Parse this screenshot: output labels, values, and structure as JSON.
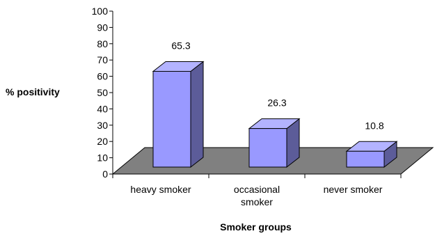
{
  "chart_data": {
    "type": "bar",
    "title": "",
    "categories": [
      "heavy smoker",
      "occasional smoker",
      "never smoker"
    ],
    "values": [
      65.3,
      26.3,
      10.8
    ],
    "data_labels": [
      "65.3",
      "26.3",
      "10.8"
    ],
    "xlabel": "Smoker groups",
    "ylabel": "% positivity",
    "ylim": [
      0,
      100
    ],
    "yticks": [
      0,
      10,
      20,
      30,
      40,
      50,
      60,
      70,
      80,
      90,
      100
    ],
    "grid": false,
    "style": "3d-column",
    "colors": {
      "bar_front": "#9999FF",
      "bar_top": "#B3B3FF",
      "bar_side": "#5C5C99",
      "floor": "#808080"
    }
  }
}
